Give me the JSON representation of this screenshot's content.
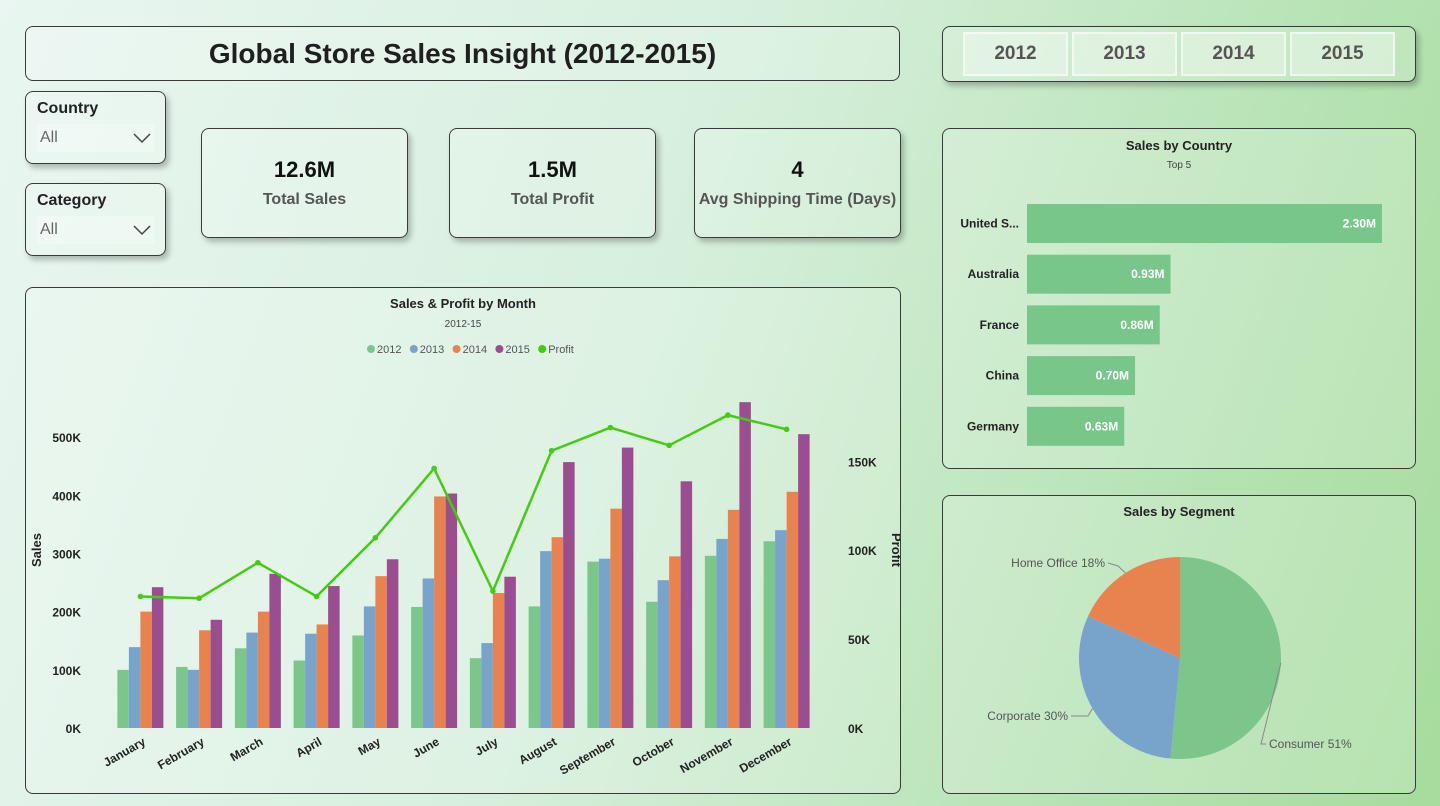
{
  "title": "Global Store Sales Insight (2012-2015)",
  "years": [
    "2012",
    "2013",
    "2014",
    "2015"
  ],
  "filters": {
    "country": {
      "label": "Country",
      "value": "All"
    },
    "category": {
      "label": "Category",
      "value": "All"
    }
  },
  "kpis": {
    "sales": {
      "value": "12.6M",
      "label": "Total Sales"
    },
    "profit": {
      "value": "1.5M",
      "label": "Total Profit"
    },
    "shipping": {
      "value": "4",
      "label": "Avg Shipping Time (Days)"
    }
  },
  "colors": {
    "y2012": "#7cc68c",
    "y2013": "#78a4cc",
    "y2014": "#e8834f",
    "y2015": "#9a4e8f",
    "profit": "#44cc11",
    "country_bar": "#78c68a",
    "consumer": "#7cc68c",
    "corporate": "#78a4cc",
    "home_office": "#e8834f"
  },
  "chart_data": [
    {
      "id": "month",
      "type": "bar",
      "title": "Sales & Profit by Month",
      "subtitle": "2012-15",
      "ylabel": "Sales",
      "y2label": "Profit",
      "categories": [
        "January",
        "February",
        "March",
        "April",
        "May",
        "June",
        "July",
        "August",
        "September",
        "October",
        "November",
        "December"
      ],
      "series": [
        {
          "name": "2012",
          "values": [
            100000,
            105000,
            137000,
            116000,
            159000,
            208000,
            120000,
            209000,
            286000,
            217000,
            296000,
            321000
          ]
        },
        {
          "name": "2013",
          "values": [
            139000,
            100000,
            164000,
            162000,
            209000,
            257000,
            146000,
            304000,
            291000,
            254000,
            325000,
            340000
          ]
        },
        {
          "name": "2014",
          "values": [
            200000,
            168000,
            200000,
            178000,
            261000,
            398000,
            232000,
            328000,
            377000,
            295000,
            375000,
            406000
          ]
        },
        {
          "name": "2015",
          "values": [
            242000,
            186000,
            265000,
            244000,
            290000,
            403000,
            260000,
            457000,
            482000,
            424000,
            560000,
            505000
          ]
        }
      ],
      "line": {
        "name": "Profit",
        "values": [
          74000,
          73000,
          93000,
          74000,
          107000,
          146000,
          77000,
          156000,
          169000,
          159000,
          176000,
          168000
        ]
      },
      "ylim": [
        0,
        550000
      ],
      "y2lim": [
        0,
        180000
      ],
      "yticks": [
        "0K",
        "100K",
        "200K",
        "300K",
        "400K",
        "500K"
      ],
      "y2ticks": [
        "0K",
        "50K",
        "100K",
        "150K"
      ],
      "legend": "top-center"
    },
    {
      "id": "country",
      "type": "bar",
      "title": "Sales by Country",
      "subtitle": "Top 5",
      "categories": [
        "United S...",
        "Australia",
        "France",
        "China",
        "Germany"
      ],
      "values": [
        2.3,
        0.93,
        0.86,
        0.7,
        0.63
      ],
      "labels": [
        "2.30M",
        "0.93M",
        "0.86M",
        "0.70M",
        "0.63M"
      ],
      "xlim": [
        0,
        2.4
      ]
    },
    {
      "id": "segment",
      "type": "pie",
      "title": "Sales by Segment",
      "slices": [
        {
          "label": "Consumer 51%",
          "value": 51
        },
        {
          "label": "Corporate 30%",
          "value": 30
        },
        {
          "label": "Home Office 18%",
          "value": 18
        }
      ]
    }
  ]
}
